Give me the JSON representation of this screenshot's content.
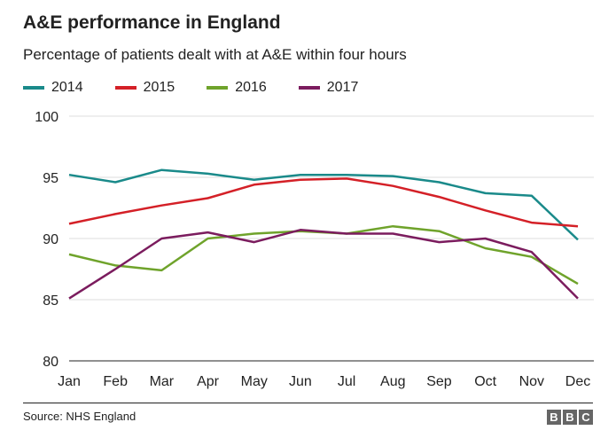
{
  "header": {
    "title": "A&E performance in England",
    "subtitle": "Percentage of patients dealt with at A&E within four hours"
  },
  "footer": {
    "source": "Source: NHS England",
    "logo_letters": [
      "B",
      "B",
      "C"
    ]
  },
  "chart_data": {
    "type": "line",
    "title": "A&E performance in England",
    "subtitle": "Percentage of patients dealt with at A&E within four hours",
    "xlabel": "",
    "ylabel": "",
    "categories": [
      "Jan",
      "Feb",
      "Mar",
      "Apr",
      "May",
      "Jun",
      "Jul",
      "Aug",
      "Sep",
      "Oct",
      "Nov",
      "Dec"
    ],
    "ylim": [
      80,
      100
    ],
    "yticks": [
      80,
      85,
      90,
      95,
      100
    ],
    "grid": true,
    "legend_position": "top-left",
    "series": [
      {
        "name": "2014",
        "color": "#1a8a8a",
        "values": [
          95.2,
          94.6,
          95.6,
          95.3,
          94.8,
          95.2,
          95.2,
          95.1,
          94.6,
          93.7,
          93.5,
          89.9
        ]
      },
      {
        "name": "2015",
        "color": "#d42027",
        "values": [
          91.2,
          92.0,
          92.7,
          93.3,
          94.4,
          94.8,
          94.9,
          94.3,
          93.4,
          92.3,
          91.3,
          91.0
        ]
      },
      {
        "name": "2016",
        "color": "#6fa32b",
        "values": [
          88.7,
          87.8,
          87.4,
          90.0,
          90.4,
          90.6,
          90.4,
          91.0,
          90.6,
          89.2,
          88.5,
          86.3
        ]
      },
      {
        "name": "2017",
        "color": "#7b1c5e",
        "values": [
          85.1,
          87.5,
          90.0,
          90.5,
          89.7,
          90.7,
          90.4,
          90.4,
          89.7,
          90.0,
          88.9,
          85.1
        ]
      }
    ]
  }
}
